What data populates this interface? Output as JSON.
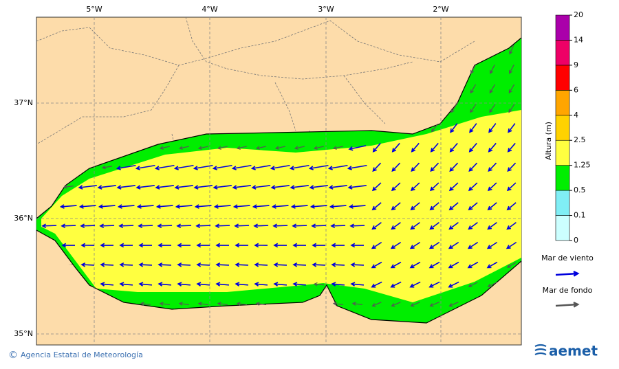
{
  "map": {
    "lon_labels": [
      "5°W",
      "4°W",
      "3°W",
      "2°W"
    ],
    "lat_labels": [
      "37°N",
      "36°N",
      "35°N"
    ],
    "colorbar": {
      "title": "Altura (m)",
      "ticks": [
        0,
        0.1,
        0.5,
        1.25,
        2.5,
        4,
        6,
        9,
        14,
        20
      ],
      "colors": [
        "#ccffff",
        "#80eef5",
        "#00ee00",
        "#ffff40",
        "#ffd200",
        "#ffa500",
        "#ff0000",
        "#ee0066",
        "#aa00aa"
      ]
    },
    "legend": [
      {
        "label": "Mar de viento",
        "color": "#0000dd"
      },
      {
        "label": "Mar de fondo",
        "color": "#555555"
      }
    ]
  },
  "footer": {
    "symbol": "©",
    "credit": "Agencia Estatal de Meteorología",
    "logo": "aemet"
  }
}
